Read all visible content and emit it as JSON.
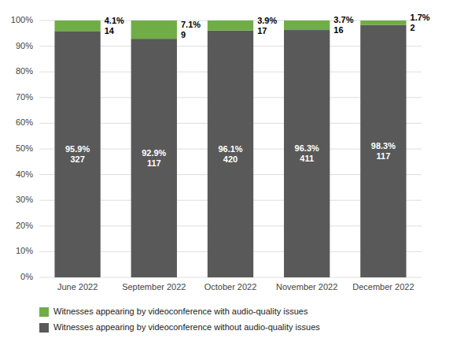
{
  "chart_data": {
    "type": "bar",
    "stacked": true,
    "data_labels": true,
    "grid": true,
    "categories": [
      "June 2022",
      "September 2022",
      "October 2022",
      "November 2022",
      "December 2022"
    ],
    "series": [
      {
        "name": "Witnesses appearing by videoconference without audio-quality issues",
        "color": "#595959",
        "values": [
          95.9,
          92.9,
          96.1,
          96.3,
          98.3
        ],
        "value_labels": [
          "95.9%",
          "92.9%",
          "96.1%",
          "96.3%",
          "98.3%"
        ],
        "counts": [
          327,
          117,
          420,
          411,
          117
        ]
      },
      {
        "name": "Witnesses appearing by videoconference with audio-quality issues",
        "color": "#70ad47",
        "values": [
          4.1,
          7.1,
          3.9,
          3.7,
          1.7
        ],
        "value_labels": [
          "4.1%",
          "7.1%",
          "3.9%",
          "3.7%",
          "1.7%"
        ],
        "counts": [
          14,
          9,
          17,
          16,
          2
        ]
      }
    ],
    "ylim": [
      0,
      100
    ],
    "yticks": [
      {
        "value": 0,
        "label": "0%"
      },
      {
        "value": 10,
        "label": "10%"
      },
      {
        "value": 20,
        "label": "20%"
      },
      {
        "value": 30,
        "label": "30%"
      },
      {
        "value": 40,
        "label": "40%"
      },
      {
        "value": 50,
        "label": "50%"
      },
      {
        "value": 60,
        "label": "60%"
      },
      {
        "value": 70,
        "label": "70%"
      },
      {
        "value": 80,
        "label": "80%"
      },
      {
        "value": 90,
        "label": "90%"
      },
      {
        "value": 100,
        "label": "100%"
      }
    ]
  }
}
